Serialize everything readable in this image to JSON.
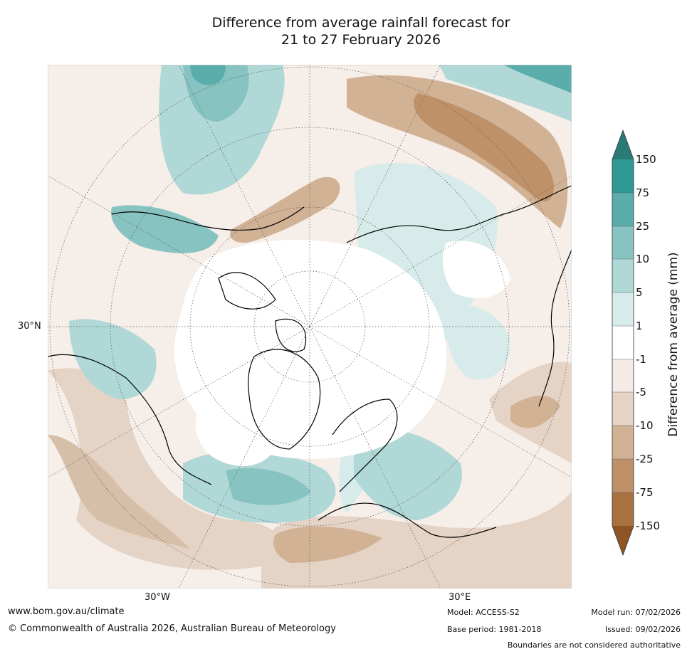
{
  "title_line1": "Difference from average rainfall forecast for",
  "title_line2": "21 to 27 February 2026",
  "map": {
    "projection": "north-polar-stereographic",
    "graticule_labels": {
      "lat_30n": "30°N",
      "lon_30w": "30°W",
      "lon_30e": "30°E"
    }
  },
  "colorbar": {
    "label": "Difference from average (mm)",
    "ticks": [
      "150",
      "75",
      "25",
      "10",
      "5",
      "1",
      "-1",
      "-5",
      "-10",
      "-25",
      "-75",
      "-150"
    ],
    "colors": {
      "above_150": "#2a7b76",
      "75_150": "#2f9a94",
      "25_75": "#5aadaa",
      "10_25": "#86c3c1",
      "5_10": "#b0d8d6",
      "1_5": "#d6ebea",
      "neg1_1": "#ffffff",
      "neg5_neg1": "#f4ebe6",
      "neg10_neg5": "#e5d3c5",
      "neg25_neg10": "#d1b295",
      "neg75_neg25": "#be9169",
      "neg150_neg75": "#a87140",
      "below_neg150": "#8d5424"
    }
  },
  "footer": {
    "url": "www.bom.gov.au/climate",
    "copyright": "© Commonwealth of Australia 2026, Australian Bureau of Meteorology",
    "model": "Model: ACCESS-S2",
    "base_period": "Base period: 1981-2018",
    "model_run": "Model run: 07/02/2026",
    "issued": "Issued: 09/02/2026",
    "disclaimer": "Boundaries are not considered authoritative"
  }
}
